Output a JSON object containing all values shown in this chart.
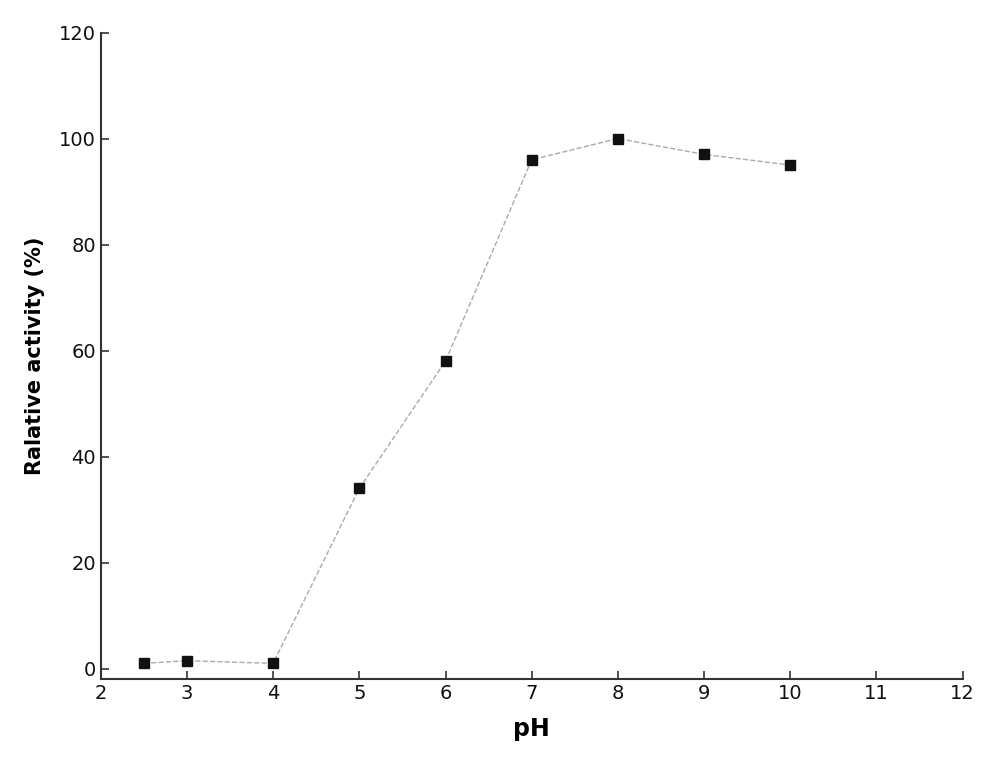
{
  "x": [
    2.5,
    3,
    4,
    5,
    6,
    7,
    8,
    9,
    10
  ],
  "y": [
    1.0,
    1.5,
    1.0,
    34.0,
    58.0,
    96.0,
    100.0,
    97.0,
    95.0
  ],
  "line_color": "#aaaaaa",
  "marker_color": "#111111",
  "marker": "s",
  "marker_size": 7,
  "line_style": "--",
  "line_width": 1.0,
  "xlabel": "pH",
  "ylabel": "Ralative activity (%)",
  "xlim": [
    2,
    12
  ],
  "ylim": [
    -2,
    120
  ],
  "xticks": [
    2,
    3,
    4,
    5,
    6,
    7,
    8,
    9,
    10,
    11,
    12
  ],
  "yticks": [
    0,
    20,
    40,
    60,
    80,
    100,
    120
  ],
  "xlabel_fontsize": 17,
  "ylabel_fontsize": 15,
  "tick_fontsize": 14,
  "xlabel_fontweight": "bold",
  "ylabel_fontweight": "bold",
  "background_color": "#ffffff",
  "spine_color": "#333333",
  "spine_linewidth": 1.5
}
